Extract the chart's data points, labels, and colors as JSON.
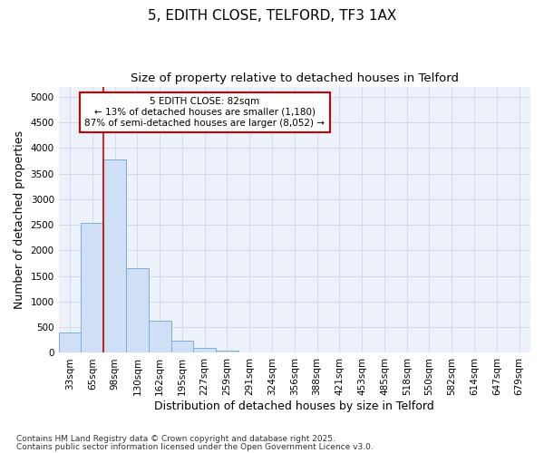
{
  "title1": "5, EDITH CLOSE, TELFORD, TF3 1AX",
  "title2": "Size of property relative to detached houses in Telford",
  "xlabel": "Distribution of detached houses by size in Telford",
  "ylabel": "Number of detached properties",
  "categories": [
    "33sqm",
    "65sqm",
    "98sqm",
    "130sqm",
    "162sqm",
    "195sqm",
    "227sqm",
    "259sqm",
    "291sqm",
    "324sqm",
    "356sqm",
    "388sqm",
    "421sqm",
    "453sqm",
    "485sqm",
    "518sqm",
    "550sqm",
    "582sqm",
    "614sqm",
    "647sqm",
    "679sqm"
  ],
  "values": [
    390,
    2540,
    3780,
    1650,
    620,
    240,
    100,
    50,
    0,
    0,
    0,
    0,
    0,
    0,
    0,
    0,
    0,
    0,
    0,
    0,
    0
  ],
  "bar_color": "#cfdff5",
  "bar_edge_color": "#7aafd4",
  "vline_x_idx": 1.5,
  "vline_color": "#cc0000",
  "annotation_line1": "5 EDITH CLOSE: 82sqm",
  "annotation_line2": "← 13% of detached houses are smaller (1,180)",
  "annotation_line3": "87% of semi-detached houses are larger (8,052) →",
  "annotation_box_color": "#cc0000",
  "ylim": [
    0,
    5200
  ],
  "yticks": [
    0,
    500,
    1000,
    1500,
    2000,
    2500,
    3000,
    3500,
    4000,
    4500,
    5000
  ],
  "grid_color": "#d0daea",
  "bg_color": "#edf1f9",
  "footer1": "Contains HM Land Registry data © Crown copyright and database right 2025.",
  "footer2": "Contains public sector information licensed under the Open Government Licence v3.0.",
  "title_fontsize": 11,
  "subtitle_fontsize": 9.5,
  "tick_fontsize": 7.5,
  "axis_label_fontsize": 9,
  "footer_fontsize": 6.5
}
